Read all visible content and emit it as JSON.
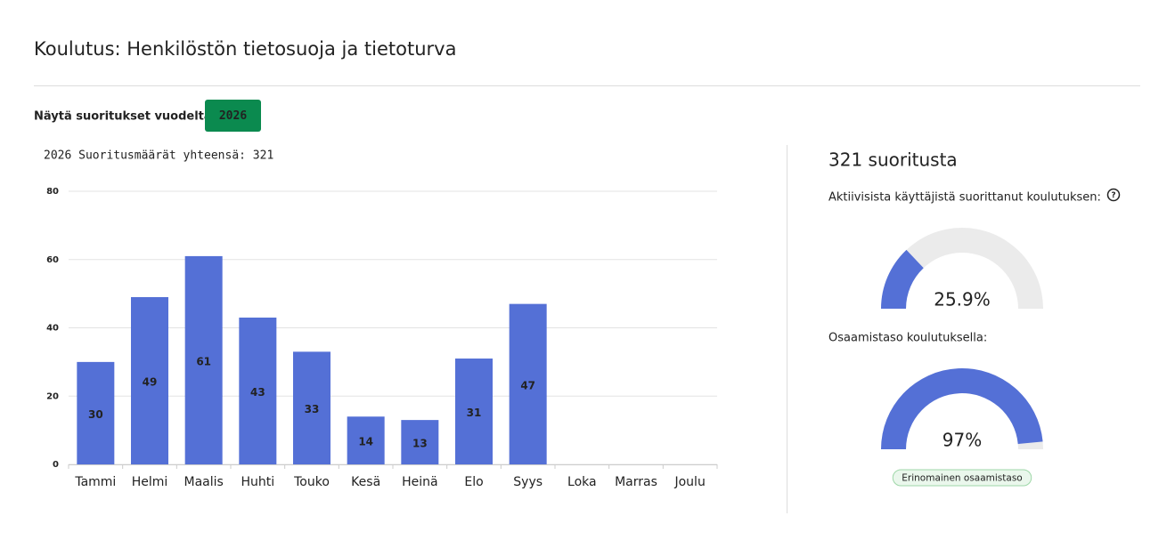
{
  "header": {
    "title": "Koulutus: Henkilöstön tietosuoja ja tietoturva"
  },
  "filter": {
    "label": "Näytä suoritukset vuodelta:",
    "year": "2026"
  },
  "summary": {
    "count_text": "321 suoritusta"
  },
  "chart_data": [
    {
      "type": "bar",
      "title": "2026 Suoritusmäärät yhteensä: 321",
      "categories": [
        "Tammi",
        "Helmi",
        "Maalis",
        "Huhti",
        "Touko",
        "Kesä",
        "Heinä",
        "Elo",
        "Syys",
        "Loka",
        "Marras",
        "Joulu"
      ],
      "values": [
        30,
        49,
        61,
        43,
        33,
        14,
        13,
        31,
        47,
        null,
        null,
        null
      ],
      "color": "#5470d6",
      "ylim": [
        0,
        80
      ],
      "yticks": [
        0,
        20,
        40,
        60,
        80
      ],
      "grid": true
    },
    {
      "type": "gauge",
      "title": "Aktiivisista käyttäjistä suorittanut koulutuksen:",
      "value": 25.9,
      "value_label": "25.9%",
      "ylim": [
        0,
        100
      ],
      "color": "#5470d6"
    },
    {
      "type": "gauge",
      "title": "Osaamistaso koulutuksella:",
      "value": 97,
      "value_label": "97%",
      "ylim": [
        0,
        100
      ],
      "color": "#5470d6",
      "badge": "Erinomainen osaamistaso"
    }
  ]
}
